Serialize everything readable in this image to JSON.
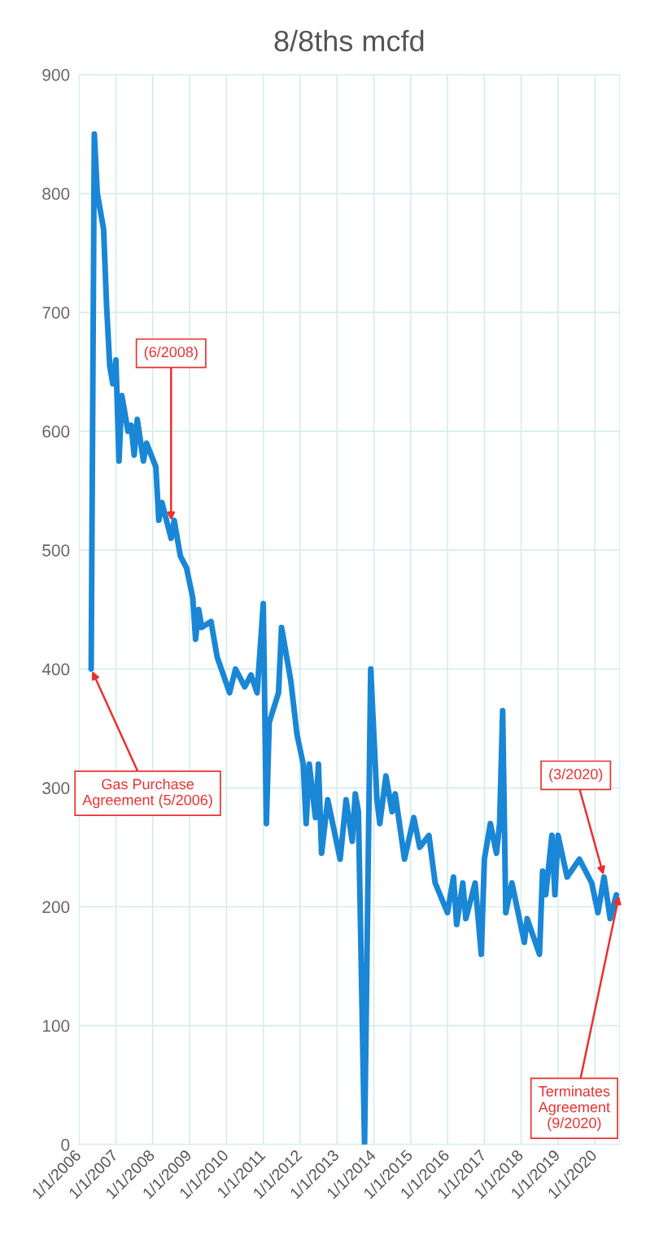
{
  "chart_data": {
    "type": "line",
    "title": "8/8ths mcfd",
    "x": [
      "2006-05",
      "2006-06",
      "2006-07",
      "2006-09",
      "2006-10",
      "2006-11",
      "2006-12",
      "2007-01",
      "2007-02",
      "2007-03",
      "2007-05",
      "2007-06",
      "2007-07",
      "2007-08",
      "2007-10",
      "2007-11",
      "2008-02",
      "2008-03",
      "2008-04",
      "2008-07",
      "2008-08",
      "2008-10",
      "2008-12",
      "2009-02",
      "2009-03",
      "2009-04",
      "2009-05",
      "2009-08",
      "2009-10",
      "2010-02",
      "2010-04",
      "2010-07",
      "2010-09",
      "2010-11",
      "2011-01",
      "2011-02",
      "2011-03",
      "2011-06",
      "2011-07",
      "2011-10",
      "2011-12",
      "2012-02",
      "2012-03",
      "2012-04",
      "2012-06",
      "2012-07",
      "2012-08",
      "2012-10",
      "2013-02",
      "2013-04",
      "2013-06",
      "2013-07",
      "2013-08",
      "2013-10",
      "2013-12",
      "2014-02",
      "2014-03",
      "2014-05",
      "2014-07",
      "2014-08",
      "2014-11",
      "2015-02",
      "2015-04",
      "2015-07",
      "2015-09",
      "2016-01",
      "2016-03",
      "2016-04",
      "2016-06",
      "2016-07",
      "2016-10",
      "2016-12",
      "2017-01",
      "2017-03",
      "2017-05",
      "2017-06",
      "2017-07",
      "2017-08",
      "2017-10",
      "2018-02",
      "2018-03",
      "2018-07",
      "2018-08",
      "2018-09",
      "2018-11",
      "2018-12",
      "2019-01",
      "2019-04",
      "2019-08",
      "2019-12",
      "2020-02",
      "2020-04",
      "2020-06",
      "2020-08"
    ],
    "series": [
      {
        "color": "#1a86d6",
        "values": [
          400,
          850,
          800,
          770,
          705,
          655,
          640,
          660,
          575,
          630,
          600,
          605,
          580,
          610,
          575,
          590,
          570,
          525,
          540,
          510,
          525,
          495,
          485,
          460,
          425,
          450,
          435,
          440,
          410,
          380,
          400,
          385,
          395,
          380,
          455,
          270,
          355,
          380,
          435,
          390,
          345,
          320,
          270,
          320,
          275,
          320,
          245,
          290,
          240,
          290,
          255,
          295,
          280,
          0,
          400,
          290,
          270,
          310,
          280,
          295,
          240,
          275,
          250,
          260,
          220,
          195,
          225,
          185,
          220,
          190,
          220,
          160,
          240,
          270,
          245,
          270,
          365,
          195,
          220,
          170,
          190,
          160,
          230,
          210,
          260,
          210,
          260,
          225,
          240,
          220,
          195,
          225,
          190,
          210
        ]
      }
    ],
    "xlim": [
      "2006-01-01",
      "2020-09-01"
    ],
    "xticks": [
      {
        "value": "2006-01-01",
        "label": "1/1/2006"
      },
      {
        "value": "2007-01-01",
        "label": "1/1/2007"
      },
      {
        "value": "2008-01-01",
        "label": "1/1/2008"
      },
      {
        "value": "2009-01-01",
        "label": "1/1/2009"
      },
      {
        "value": "2010-01-01",
        "label": "1/1/2010"
      },
      {
        "value": "2011-01-01",
        "label": "1/1/2011"
      },
      {
        "value": "2012-01-01",
        "label": "1/1/2012"
      },
      {
        "value": "2013-01-01",
        "label": "1/1/2013"
      },
      {
        "value": "2014-01-01",
        "label": "1/1/2014"
      },
      {
        "value": "2015-01-01",
        "label": "1/1/2015"
      },
      {
        "value": "2016-01-01",
        "label": "1/1/2016"
      },
      {
        "value": "2017-01-01",
        "label": "1/1/2017"
      },
      {
        "value": "2018-01-01",
        "label": "1/1/2018"
      },
      {
        "value": "2019-01-01",
        "label": "1/1/2019"
      },
      {
        "value": "2020-01-01",
        "label": "1/1/2020"
      }
    ],
    "ylim": [
      0,
      900
    ],
    "yticks": [
      0,
      100,
      200,
      300,
      400,
      500,
      600,
      700,
      800,
      900
    ],
    "grid": true,
    "annotations": [
      {
        "text": "Gas Purchase\nAgreement (5/2006)",
        "x": "2006-05",
        "y": 400
      },
      {
        "text": "(6/2008)",
        "x": "2008-07",
        "y": 523
      },
      {
        "text": "(3/2020)",
        "x": "2020-04",
        "y": 225
      },
      {
        "text": "Terminates\nAgreement\n(9/2020)",
        "x": "2020-09",
        "y": 211
      }
    ]
  }
}
